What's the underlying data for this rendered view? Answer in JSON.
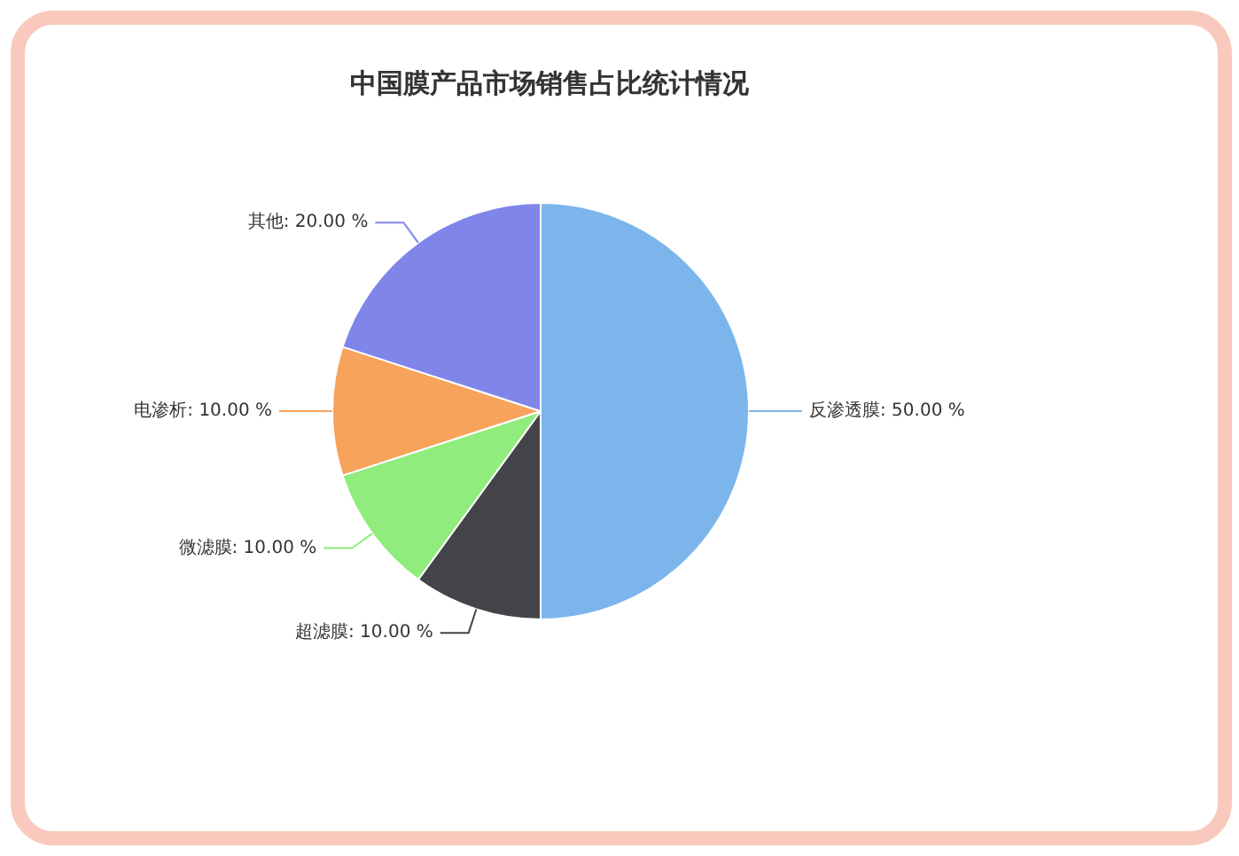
{
  "chart_data": {
    "type": "pie",
    "title": "中国膜产品市场销售占比统计情况",
    "categories": [
      "反渗透膜",
      "超滤膜",
      "微滤膜",
      "电渗析",
      "其他"
    ],
    "values": [
      50,
      10,
      10,
      10,
      20
    ],
    "colors": [
      "#7cb5ec",
      "#434348",
      "#90ed7d",
      "#f7a35c",
      "#8085e9"
    ],
    "value_labels": [
      "50.00 %",
      "10.00 %",
      "10.00 %",
      "10.00 %",
      "20.00 %"
    ],
    "legend": false
  }
}
